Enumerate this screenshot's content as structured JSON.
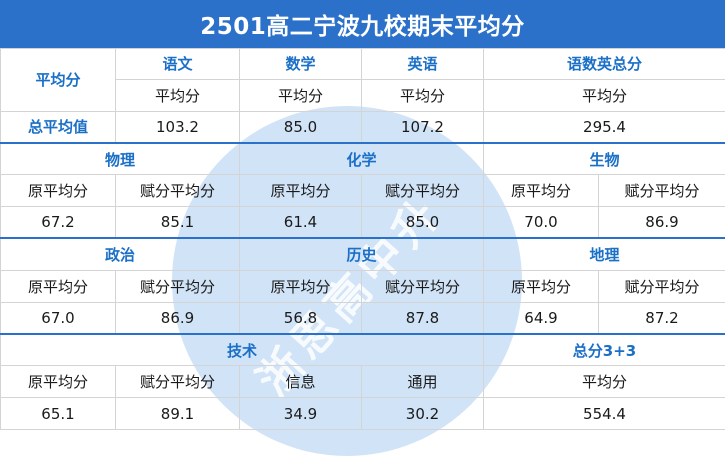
{
  "title": "2501高二宁波九校期末平均分",
  "watermark": "浙思高中升",
  "section1": {
    "row_label": "平均分",
    "subjects": [
      "语文",
      "数学",
      "英语",
      "语数英总分"
    ],
    "sub_label": "平均分",
    "total_label": "总平均值",
    "values": [
      "103.2",
      "85.0",
      "107.2",
      "295.4"
    ]
  },
  "section2": {
    "subjects": [
      "物理",
      "化学",
      "生物"
    ],
    "raw_label": "原平均分",
    "scaled_label": "赋分平均分",
    "values": [
      "67.2",
      "85.1",
      "61.4",
      "85.0",
      "70.0",
      "86.9"
    ]
  },
  "section3": {
    "subjects": [
      "政治",
      "历史",
      "地理"
    ],
    "raw_label": "原平均分",
    "scaled_label": "赋分平均分",
    "values": [
      "67.0",
      "86.9",
      "56.8",
      "87.8",
      "64.9",
      "87.2"
    ]
  },
  "section4": {
    "tech_label": "技术",
    "total_label": "总分3+3",
    "raw_label": "原平均分",
    "scaled_label": "赋分平均分",
    "info_label": "信息",
    "general_label": "通用",
    "avg_label": "平均分",
    "values": [
      "65.1",
      "89.1",
      "34.9",
      "30.2",
      "554.4"
    ]
  }
}
